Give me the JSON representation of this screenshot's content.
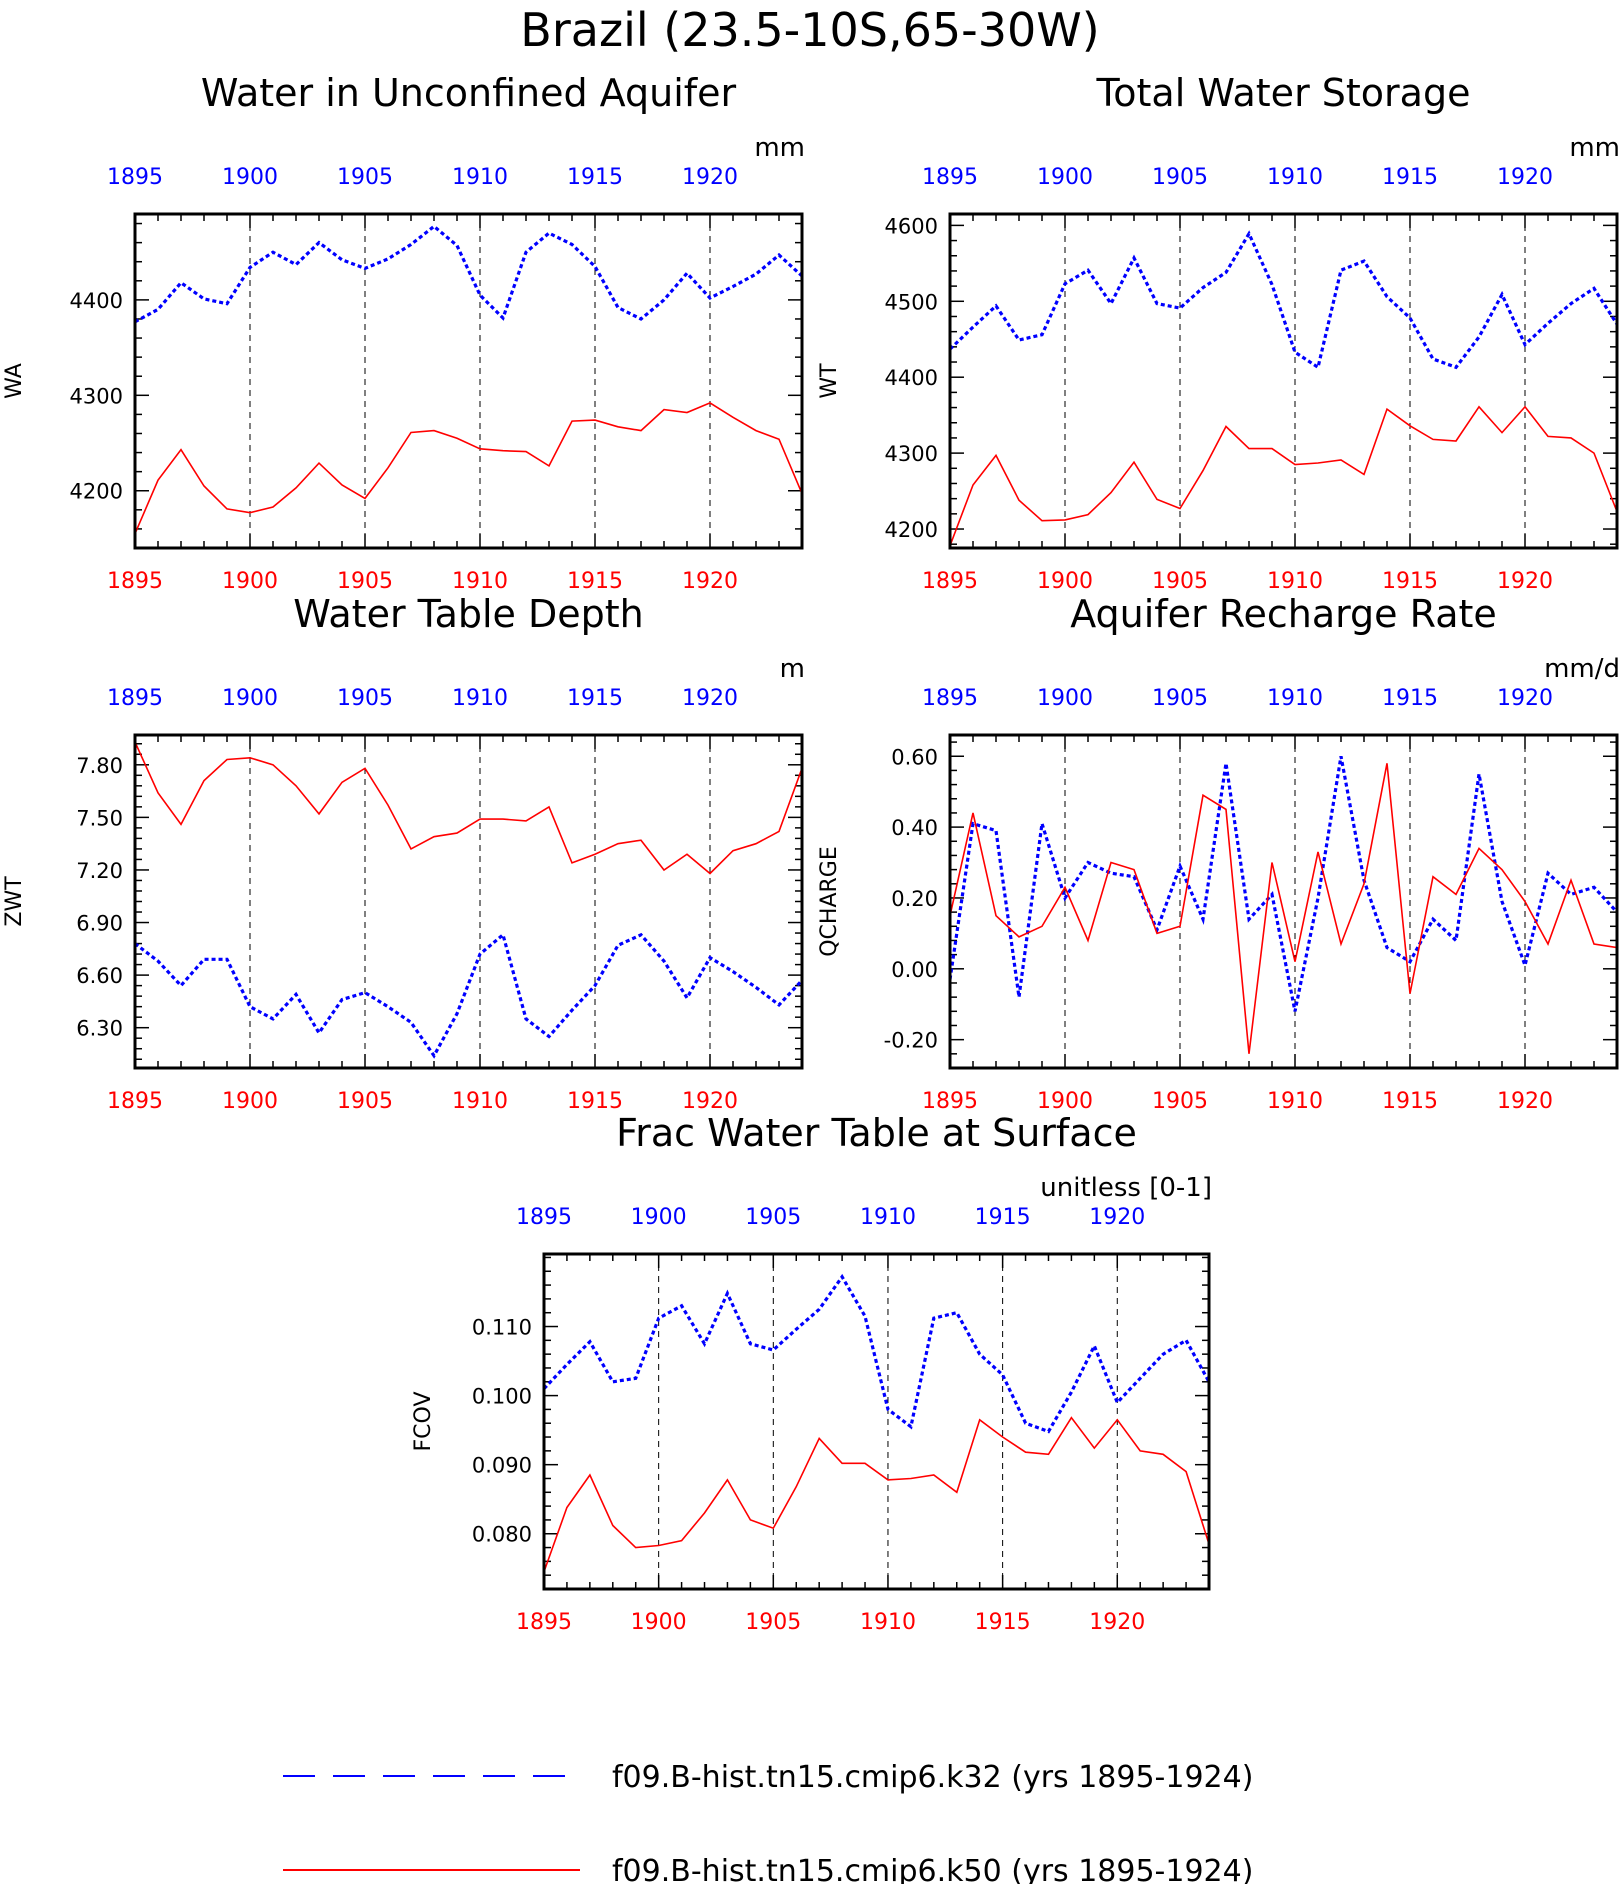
{
  "figure": {
    "title": "Brazil (23.5-10S,65-30W)",
    "colors": {
      "series_a": "#0000ff",
      "series_b": "#ff0000",
      "axes": "#000000"
    }
  },
  "legend": {
    "items": [
      {
        "label": "f09.B-hist.tn15.cmip6.k32 (yrs 1895-1924)",
        "color": "#0000ff",
        "style": "dashed"
      },
      {
        "label": "f09.B-hist.tn15.cmip6.k50 (yrs 1895-1924)",
        "color": "#ff0000",
        "style": "solid"
      }
    ]
  },
  "chart_data": [
    {
      "type": "line",
      "title": "Water in Unconfined Aquifer",
      "ylabel": "WA",
      "units": "mm",
      "xlim": [
        1895,
        1924
      ],
      "ylim": [
        4140,
        4490
      ],
      "yticks": [
        4200,
        4300,
        4400
      ],
      "ytick_labels": [
        "4200",
        "4300",
        "4400"
      ],
      "xticks": [
        1895,
        1900,
        1905,
        1910,
        1915,
        1920
      ],
      "x": [
        1895,
        1896,
        1897,
        1898,
        1899,
        1900,
        1901,
        1902,
        1903,
        1904,
        1905,
        1906,
        1907,
        1908,
        1909,
        1910,
        1911,
        1912,
        1913,
        1914,
        1915,
        1916,
        1917,
        1918,
        1919,
        1920,
        1921,
        1922,
        1923,
        1924
      ],
      "series": [
        {
          "name": "f09.B-hist.tn15.cmip6.k32 (yrs 1895-1924)",
          "color": "#0000ff",
          "style": "dashed",
          "values": [
            4377,
            4390,
            4418,
            4401,
            4396,
            4434,
            4450,
            4437,
            4460,
            4442,
            4433,
            4443,
            4458,
            4477,
            4457,
            4405,
            4381,
            4450,
            4470,
            4458,
            4435,
            4392,
            4380,
            4400,
            4428,
            4402,
            4414,
            4427,
            4447,
            4425
          ]
        },
        {
          "name": "f09.B-hist.tn15.cmip6.k50 (yrs 1895-1924)",
          "color": "#ff0000",
          "style": "solid",
          "values": [
            4155,
            4211,
            4243,
            4205,
            4181,
            4177,
            4183,
            4203,
            4229,
            4206,
            4192,
            4224,
            4261,
            4263,
            4255,
            4244,
            4242,
            4241,
            4226,
            4273,
            4274,
            4267,
            4263,
            4285,
            4282,
            4292,
            4277,
            4263,
            4254,
            4197
          ]
        }
      ]
    },
    {
      "type": "line",
      "title": "Total Water Storage",
      "ylabel": "WT",
      "units": "mm",
      "xlim": [
        1895,
        1924
      ],
      "ylim": [
        4175,
        4615
      ],
      "yticks": [
        4200,
        4300,
        4400,
        4500,
        4600
      ],
      "ytick_labels": [
        "4200",
        "4300",
        "4400",
        "4500",
        "4600"
      ],
      "xticks": [
        1895,
        1900,
        1905,
        1910,
        1915,
        1920
      ],
      "x": [
        1895,
        1896,
        1897,
        1898,
        1899,
        1900,
        1901,
        1902,
        1903,
        1904,
        1905,
        1906,
        1907,
        1908,
        1909,
        1910,
        1911,
        1912,
        1913,
        1914,
        1915,
        1916,
        1917,
        1918,
        1919,
        1920,
        1921,
        1922,
        1923,
        1924
      ],
      "series": [
        {
          "name": "f09.B-hist.tn15.cmip6.k32 (yrs 1895-1924)",
          "color": "#0000ff",
          "style": "dashed",
          "values": [
            4437,
            4466,
            4494,
            4449,
            4456,
            4523,
            4541,
            4497,
            4557,
            4497,
            4491,
            4518,
            4538,
            4589,
            4522,
            4433,
            4413,
            4541,
            4553,
            4506,
            4478,
            4424,
            4413,
            4453,
            4509,
            4443,
            4471,
            4497,
            4517,
            4470
          ]
        },
        {
          "name": "f09.B-hist.tn15.cmip6.k50 (yrs 1895-1924)",
          "color": "#ff0000",
          "style": "solid",
          "values": [
            4178,
            4258,
            4297,
            4238,
            4211,
            4212,
            4219,
            4248,
            4288,
            4239,
            4227,
            4277,
            4335,
            4306,
            4306,
            4285,
            4287,
            4291,
            4272,
            4358,
            4336,
            4318,
            4316,
            4361,
            4327,
            4361,
            4322,
            4320,
            4300,
            4223
          ]
        }
      ]
    },
    {
      "type": "line",
      "title": "Water Table Depth",
      "ylabel": "ZWT",
      "units": "m",
      "xlim": [
        1895,
        1924
      ],
      "ylim": [
        6.07,
        7.97
      ],
      "yticks": [
        6.3,
        6.6,
        6.9,
        7.2,
        7.5,
        7.8
      ],
      "ytick_labels": [
        "6.30",
        "6.60",
        "6.90",
        "7.20",
        "7.50",
        "7.80"
      ],
      "xticks": [
        1895,
        1900,
        1905,
        1910,
        1915,
        1920
      ],
      "x": [
        1895,
        1896,
        1897,
        1898,
        1899,
        1900,
        1901,
        1902,
        1903,
        1904,
        1905,
        1906,
        1907,
        1908,
        1909,
        1910,
        1911,
        1912,
        1913,
        1914,
        1915,
        1916,
        1917,
        1918,
        1919,
        1920,
        1921,
        1922,
        1923,
        1924
      ],
      "series": [
        {
          "name": "f09.B-hist.tn15.cmip6.k32 (yrs 1895-1924)",
          "color": "#0000ff",
          "style": "dashed",
          "values": [
            6.78,
            6.68,
            6.54,
            6.69,
            6.69,
            6.42,
            6.35,
            6.49,
            6.27,
            6.46,
            6.5,
            6.42,
            6.33,
            6.14,
            6.38,
            6.72,
            6.83,
            6.35,
            6.25,
            6.4,
            6.54,
            6.77,
            6.83,
            6.68,
            6.47,
            6.7,
            6.62,
            6.53,
            6.43,
            6.57
          ]
        },
        {
          "name": "f09.B-hist.tn15.cmip6.k50 (yrs 1895-1924)",
          "color": "#ff0000",
          "style": "solid",
          "values": [
            7.93,
            7.64,
            7.46,
            7.71,
            7.83,
            7.84,
            7.8,
            7.68,
            7.52,
            7.7,
            7.78,
            7.57,
            7.32,
            7.39,
            7.41,
            7.49,
            7.49,
            7.48,
            7.56,
            7.24,
            7.29,
            7.35,
            7.37,
            7.2,
            7.29,
            7.18,
            7.31,
            7.35,
            7.42,
            7.78
          ]
        }
      ]
    },
    {
      "type": "line",
      "title": "Aquifer Recharge Rate",
      "ylabel": "QCHARGE",
      "units": "mm/d",
      "xlim": [
        1895,
        1924
      ],
      "ylim": [
        -0.28,
        0.66
      ],
      "yticks": [
        -0.2,
        0.0,
        0.2,
        0.4,
        0.6
      ],
      "ytick_labels": [
        "-0.20",
        "0.00",
        "0.20",
        "0.40",
        "0.60"
      ],
      "xticks": [
        1895,
        1900,
        1905,
        1910,
        1915,
        1920
      ],
      "x": [
        1895,
        1896,
        1897,
        1898,
        1899,
        1900,
        1901,
        1902,
        1903,
        1904,
        1905,
        1906,
        1907,
        1908,
        1909,
        1910,
        1911,
        1912,
        1913,
        1914,
        1915,
        1916,
        1917,
        1918,
        1919,
        1920,
        1921,
        1922,
        1923,
        1924
      ],
      "series": [
        {
          "name": "f09.B-hist.tn15.cmip6.k32 (yrs 1895-1924)",
          "color": "#0000ff",
          "style": "dashed",
          "values": [
            -0.03,
            0.41,
            0.39,
            -0.08,
            0.41,
            0.2,
            0.3,
            0.27,
            0.26,
            0.11,
            0.29,
            0.14,
            0.58,
            0.14,
            0.21,
            -0.12,
            0.2,
            0.6,
            0.25,
            0.06,
            0.02,
            0.14,
            0.08,
            0.55,
            0.19,
            0.01,
            0.27,
            0.21,
            0.23,
            0.16
          ]
        },
        {
          "name": "f09.B-hist.tn15.cmip6.k50 (yrs 1895-1924)",
          "color": "#ff0000",
          "style": "solid",
          "values": [
            0.15,
            0.44,
            0.15,
            0.09,
            0.12,
            0.23,
            0.08,
            0.3,
            0.28,
            0.1,
            0.12,
            0.49,
            0.45,
            -0.24,
            0.3,
            0.02,
            0.33,
            0.07,
            0.24,
            0.58,
            -0.07,
            0.26,
            0.21,
            0.34,
            0.28,
            0.19,
            0.07,
            0.25,
            0.07,
            0.06
          ]
        }
      ]
    },
    {
      "type": "line",
      "title": "Frac Water Table at Surface",
      "ylabel": "FCOV",
      "units": "unitless [0-1]",
      "xlim": [
        1895,
        1924
      ],
      "ylim": [
        0.072,
        0.1205
      ],
      "yticks": [
        0.08,
        0.09,
        0.1,
        0.11
      ],
      "ytick_labels": [
        "0.080",
        "0.090",
        "0.100",
        "0.110"
      ],
      "xticks": [
        1895,
        1900,
        1905,
        1910,
        1915,
        1920
      ],
      "x": [
        1895,
        1896,
        1897,
        1898,
        1899,
        1900,
        1901,
        1902,
        1903,
        1904,
        1905,
        1906,
        1907,
        1908,
        1909,
        1910,
        1911,
        1912,
        1913,
        1914,
        1915,
        1916,
        1917,
        1918,
        1919,
        1920,
        1921,
        1922,
        1923,
        1924
      ],
      "series": [
        {
          "name": "f09.B-hist.tn15.cmip6.k32 (yrs 1895-1924)",
          "color": "#0000ff",
          "style": "dashed",
          "values": [
            0.101,
            0.1045,
            0.1078,
            0.102,
            0.1025,
            0.1112,
            0.113,
            0.1075,
            0.1148,
            0.1075,
            0.1066,
            0.1096,
            0.1125,
            0.1172,
            0.1115,
            0.098,
            0.0955,
            0.1112,
            0.112,
            0.106,
            0.103,
            0.096,
            0.0948,
            0.1005,
            0.1072,
            0.099,
            0.1025,
            0.106,
            0.108,
            0.102
          ]
        },
        {
          "name": "f09.B-hist.tn15.cmip6.k50 (yrs 1895-1924)",
          "color": "#ff0000",
          "style": "solid",
          "values": [
            0.0745,
            0.0838,
            0.0885,
            0.0812,
            0.078,
            0.0783,
            0.079,
            0.083,
            0.0878,
            0.082,
            0.0808,
            0.0868,
            0.0938,
            0.0902,
            0.0902,
            0.0878,
            0.088,
            0.0885,
            0.086,
            0.0965,
            0.094,
            0.0918,
            0.0915,
            0.0968,
            0.0924,
            0.0965,
            0.092,
            0.0915,
            0.089,
            0.0785
          ]
        }
      ]
    }
  ]
}
